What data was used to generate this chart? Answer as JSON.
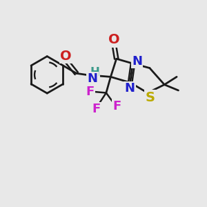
{
  "background_color": "#e8e8e8",
  "atom_colors": {
    "C": "#1a1a1a",
    "H": "#3a9a8a",
    "N": "#2020cc",
    "O": "#cc2020",
    "F": "#cc22cc",
    "S": "#bbaa00"
  },
  "bond_color": "#1a1a1a",
  "bond_width": 2.0,
  "font_size_atom": 14,
  "font_size_small": 11
}
